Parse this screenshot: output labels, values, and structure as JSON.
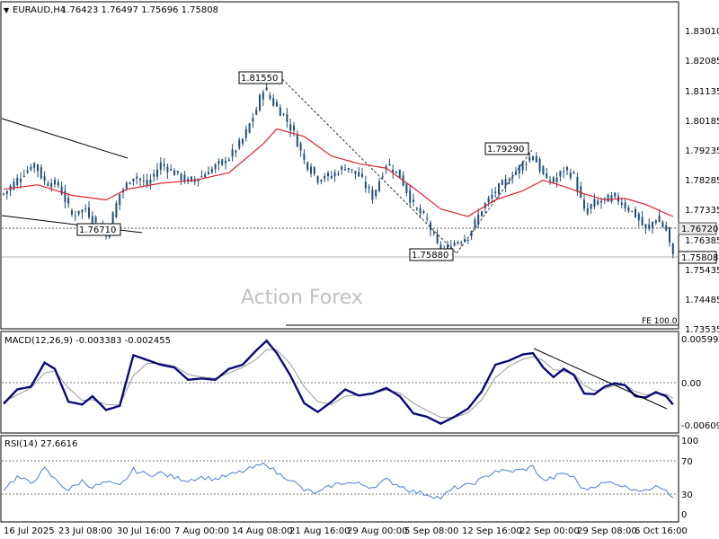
{
  "header": {
    "symbol": "EURAUD,H4",
    "ohlc": "1.76423 1.76497 1.75696 1.75808"
  },
  "watermark": "Action Forex",
  "colors": {
    "candle": "#1f4e79",
    "ma": "#e0202e",
    "macd": "#0a0a7a",
    "signal": "#999999",
    "rsi": "#4a7fd0",
    "trend": "#000000"
  },
  "chart_data": [
    {
      "type": "candlestick",
      "title": "EURAUD,H4",
      "ylim": [
        1.73535,
        1.8382
      ],
      "y_ticks": [
        "1.83010",
        "1.82085",
        "1.81135",
        "1.80185",
        "1.79235",
        "1.78285",
        "1.77335",
        "1.76385",
        "1.75435",
        "1.74485",
        "1.73535"
      ],
      "x_ticks": [
        "16 Jul 2025",
        "23 Jul 08:00",
        "30 Jul 16:00",
        "7 Aug 00:00",
        "14 Aug 08:00",
        "21 Aug 16:00",
        "29 Aug 00:00",
        "5 Sep 08:00",
        "12 Sep 16:00",
        "22 Sep 00:00",
        "29 Sep 08:00",
        "6 Oct 16:00"
      ],
      "price_labels": [
        "1.76720",
        "1.75808"
      ],
      "annotations": [
        {
          "text": "1.81550",
          "value": 1.8155
        },
        {
          "text": "1.76710",
          "value": 1.7671
        },
        {
          "text": "1.79290",
          "value": 1.7929
        },
        {
          "text": "1.75880",
          "value": 1.7588
        },
        {
          "text": "FE 100.0",
          "value": 1.7357
        }
      ],
      "horizontal_levels": [
        1.7672,
        1.7581
      ],
      "close_anchors": [
        [
          0,
          1.78
        ],
        [
          5,
          1.786
        ],
        [
          9,
          1.79
        ],
        [
          12,
          1.784
        ],
        [
          16,
          1.783
        ],
        [
          20,
          1.773
        ],
        [
          24,
          1.775
        ],
        [
          27,
          1.77
        ],
        [
          30,
          1.766
        ],
        [
          34,
          1.78
        ],
        [
          38,
          1.786
        ],
        [
          42,
          1.783
        ],
        [
          46,
          1.79
        ],
        [
          50,
          1.787
        ],
        [
          54,
          1.784
        ],
        [
          58,
          1.786
        ],
        [
          62,
          1.789
        ],
        [
          66,
          1.792
        ],
        [
          70,
          1.798
        ],
        [
          74,
          1.808
        ],
        [
          76,
          1.815
        ],
        [
          79,
          1.81
        ],
        [
          82,
          1.806
        ],
        [
          85,
          1.8
        ],
        [
          88,
          1.791
        ],
        [
          92,
          1.785
        ],
        [
          96,
          1.786
        ],
        [
          100,
          1.789
        ],
        [
          104,
          1.786
        ],
        [
          108,
          1.779
        ],
        [
          112,
          1.79
        ],
        [
          116,
          1.786
        ],
        [
          120,
          1.776
        ],
        [
          124,
          1.771
        ],
        [
          128,
          1.76
        ],
        [
          132,
          1.764
        ],
        [
          136,
          1.766
        ],
        [
          140,
          1.775
        ],
        [
          144,
          1.781
        ],
        [
          148,
          1.785
        ],
        [
          152,
          1.79
        ],
        [
          155,
          1.793
        ],
        [
          158,
          1.786
        ],
        [
          161,
          1.784
        ],
        [
          164,
          1.788
        ],
        [
          167,
          1.786
        ],
        [
          170,
          1.774
        ],
        [
          173,
          1.777
        ],
        [
          176,
          1.778
        ],
        [
          179,
          1.779
        ],
        [
          182,
          1.776
        ],
        [
          185,
          1.773
        ],
        [
          188,
          1.768
        ],
        [
          191,
          1.772
        ],
        [
          194,
          1.768
        ],
        [
          196,
          1.759
        ]
      ],
      "ma_anchors": [
        [
          0,
          1.7815
        ],
        [
          10,
          1.783
        ],
        [
          20,
          1.7795
        ],
        [
          30,
          1.778
        ],
        [
          36,
          1.7815
        ],
        [
          46,
          1.7835
        ],
        [
          56,
          1.7845
        ],
        [
          66,
          1.787
        ],
        [
          76,
          1.7965
        ],
        [
          80,
          1.8015
        ],
        [
          88,
          1.799
        ],
        [
          96,
          1.7925
        ],
        [
          104,
          1.79
        ],
        [
          112,
          1.7885
        ],
        [
          120,
          1.782
        ],
        [
          128,
          1.775
        ],
        [
          136,
          1.7725
        ],
        [
          144,
          1.778
        ],
        [
          152,
          1.781
        ],
        [
          158,
          1.7845
        ],
        [
          164,
          1.7825
        ],
        [
          170,
          1.78
        ],
        [
          176,
          1.778
        ],
        [
          182,
          1.7785
        ],
        [
          188,
          1.7765
        ],
        [
          196,
          1.7725
        ]
      ]
    },
    {
      "type": "line",
      "title": "MACD(12,26,9) -0.003383 -0.002455",
      "ylim": [
        -0.0073,
        0.0066
      ],
      "y_ticks": [
        "0.00599",
        "0.00",
        "-0.006095"
      ],
      "macd_anchors": [
        [
          0,
          -0.0033
        ],
        [
          4,
          -0.0012
        ],
        [
          8,
          -0.0008
        ],
        [
          12,
          0.0027
        ],
        [
          15,
          0.0018
        ],
        [
          19,
          -0.003
        ],
        [
          23,
          -0.0034
        ],
        [
          26,
          -0.0022
        ],
        [
          30,
          -0.0042
        ],
        [
          34,
          -0.0036
        ],
        [
          38,
          0.0038
        ],
        [
          42,
          0.0031
        ],
        [
          46,
          0.0024
        ],
        [
          50,
          0.002
        ],
        [
          54,
          0.0002
        ],
        [
          58,
          0.0004
        ],
        [
          62,
          0.0002
        ],
        [
          66,
          0.0018
        ],
        [
          70,
          0.0024
        ],
        [
          74,
          0.0045
        ],
        [
          77,
          0.0059
        ],
        [
          80,
          0.0041
        ],
        [
          84,
          0.0008
        ],
        [
          88,
          -0.0032
        ],
        [
          92,
          -0.0045
        ],
        [
          96,
          -0.003
        ],
        [
          100,
          -0.0012
        ],
        [
          104,
          -0.0021
        ],
        [
          108,
          -0.0018
        ],
        [
          112,
          -0.001
        ],
        [
          116,
          -0.0022
        ],
        [
          120,
          -0.0047
        ],
        [
          124,
          -0.0052
        ],
        [
          128,
          -0.0062
        ],
        [
          132,
          -0.0052
        ],
        [
          136,
          -0.004
        ],
        [
          140,
          -0.0015
        ],
        [
          144,
          0.0024
        ],
        [
          148,
          0.003
        ],
        [
          152,
          0.0039
        ],
        [
          155,
          0.0041
        ],
        [
          158,
          0.002
        ],
        [
          161,
          0.0006
        ],
        [
          164,
          0.0018
        ],
        [
          167,
          0.0009
        ],
        [
          170,
          -0.0018
        ],
        [
          173,
          -0.0019
        ],
        [
          176,
          -0.0008
        ],
        [
          179,
          -0.0003
        ],
        [
          182,
          -0.0006
        ],
        [
          185,
          -0.0022
        ],
        [
          188,
          -0.0024
        ],
        [
          191,
          -0.0016
        ],
        [
          194,
          -0.0022
        ],
        [
          196,
          -0.0034
        ]
      ],
      "signal_anchors": [
        [
          0,
          -0.003
        ],
        [
          4,
          -0.002
        ],
        [
          8,
          -0.001
        ],
        [
          12,
          0.0012
        ],
        [
          15,
          0.0015
        ],
        [
          19,
          -0.001
        ],
        [
          23,
          -0.0028
        ],
        [
          26,
          -0.0027
        ],
        [
          30,
          -0.0034
        ],
        [
          34,
          -0.0035
        ],
        [
          38,
          0.0008
        ],
        [
          42,
          0.0026
        ],
        [
          46,
          0.0026
        ],
        [
          50,
          0.0022
        ],
        [
          54,
          0.001
        ],
        [
          58,
          0.0006
        ],
        [
          62,
          0.0004
        ],
        [
          66,
          0.0012
        ],
        [
          70,
          0.002
        ],
        [
          74,
          0.0032
        ],
        [
          77,
          0.0046
        ],
        [
          80,
          0.0046
        ],
        [
          84,
          0.0025
        ],
        [
          88,
          -0.0008
        ],
        [
          92,
          -0.003
        ],
        [
          96,
          -0.0034
        ],
        [
          100,
          -0.0022
        ],
        [
          104,
          -0.002
        ],
        [
          108,
          -0.0018
        ],
        [
          112,
          -0.0013
        ],
        [
          116,
          -0.0017
        ],
        [
          120,
          -0.0032
        ],
        [
          124,
          -0.0043
        ],
        [
          128,
          -0.0053
        ],
        [
          132,
          -0.0053
        ],
        [
          136,
          -0.0046
        ],
        [
          140,
          -0.0027
        ],
        [
          144,
          0.0005
        ],
        [
          148,
          0.0022
        ],
        [
          152,
          0.0032
        ],
        [
          155,
          0.0036
        ],
        [
          158,
          0.003
        ],
        [
          161,
          0.0017
        ],
        [
          164,
          0.0014
        ],
        [
          167,
          0.0011
        ],
        [
          170,
          -0.0006
        ],
        [
          173,
          -0.0014
        ],
        [
          176,
          -0.0011
        ],
        [
          179,
          -0.0006
        ],
        [
          182,
          -0.0006
        ],
        [
          185,
          -0.0015
        ],
        [
          188,
          -0.002
        ],
        [
          191,
          -0.0018
        ],
        [
          194,
          -0.0019
        ],
        [
          196,
          -0.0025
        ]
      ]
    },
    {
      "type": "line",
      "title": "RSI(14) 27.6616",
      "ylim": [
        0,
        100
      ],
      "y_ticks": [
        "100",
        "70",
        "30",
        "0"
      ],
      "levels": [
        70,
        30
      ],
      "rsi_anchors": [
        [
          0,
          38
        ],
        [
          4,
          53
        ],
        [
          8,
          45
        ],
        [
          12,
          63
        ],
        [
          15,
          50
        ],
        [
          19,
          36
        ],
        [
          23,
          48
        ],
        [
          26,
          40
        ],
        [
          30,
          46
        ],
        [
          34,
          41
        ],
        [
          38,
          62
        ],
        [
          42,
          56
        ],
        [
          46,
          58
        ],
        [
          50,
          52
        ],
        [
          54,
          49
        ],
        [
          58,
          53
        ],
        [
          62,
          50
        ],
        [
          66,
          55
        ],
        [
          70,
          60
        ],
        [
          74,
          66
        ],
        [
          77,
          70
        ],
        [
          80,
          58
        ],
        [
          84,
          50
        ],
        [
          88,
          36
        ],
        [
          92,
          32
        ],
        [
          96,
          42
        ],
        [
          100,
          46
        ],
        [
          104,
          44
        ],
        [
          108,
          40
        ],
        [
          112,
          49
        ],
        [
          116,
          42
        ],
        [
          120,
          34
        ],
        [
          124,
          31
        ],
        [
          128,
          26
        ],
        [
          132,
          39
        ],
        [
          136,
          42
        ],
        [
          140,
          50
        ],
        [
          144,
          61
        ],
        [
          148,
          60
        ],
        [
          152,
          62
        ],
        [
          155,
          66
        ],
        [
          158,
          48
        ],
        [
          161,
          52
        ],
        [
          164,
          58
        ],
        [
          167,
          52
        ],
        [
          170,
          36
        ],
        [
          173,
          42
        ],
        [
          176,
          45
        ],
        [
          179,
          46
        ],
        [
          182,
          40
        ],
        [
          185,
          38
        ],
        [
          188,
          34
        ],
        [
          191,
          44
        ],
        [
          194,
          37
        ],
        [
          196,
          28
        ]
      ]
    }
  ]
}
